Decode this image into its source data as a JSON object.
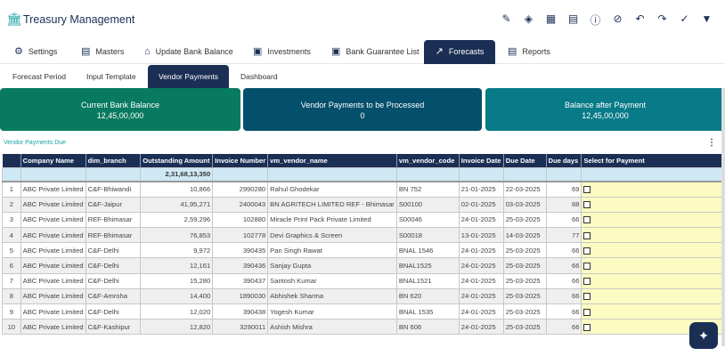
{
  "app": {
    "title": "Treasury Management",
    "logo_icon": "bank-icon"
  },
  "toolbar": [
    {
      "name": "edit-icon",
      "glyph": "✎"
    },
    {
      "name": "layers-icon",
      "glyph": "◈"
    },
    {
      "name": "calculator-icon",
      "glyph": "▦"
    },
    {
      "name": "copy-icon",
      "glyph": "▤"
    },
    {
      "name": "info-icon",
      "glyph": "ⓘ"
    },
    {
      "name": "hide-icon",
      "glyph": "⊘"
    },
    {
      "name": "undo-icon",
      "glyph": "↶"
    },
    {
      "name": "redo-icon",
      "glyph": "↷"
    },
    {
      "name": "check-icon",
      "glyph": "✓"
    },
    {
      "name": "filter-icon",
      "glyph": "▼"
    }
  ],
  "tabs": [
    {
      "label": "Settings",
      "icon": "⚙"
    },
    {
      "label": "Masters",
      "icon": "▤"
    },
    {
      "label": "Update Bank Balance",
      "icon": "⌂"
    },
    {
      "label": "Investments",
      "icon": "▣"
    },
    {
      "label": "Bank Guarantee List",
      "icon": "▣"
    },
    {
      "label": "Forecasts",
      "icon": "↗"
    },
    {
      "label": "Reports",
      "icon": "▤"
    }
  ],
  "subtabs": [
    "Forecast Period",
    "Input Template",
    "Vendor Payments",
    "Dashboard"
  ],
  "cards": [
    {
      "label": "Current Bank Balance",
      "value": "12,45,00,000",
      "color": "#087a5f"
    },
    {
      "label": "Vendor Payments to be Processed",
      "value": "0",
      "color": "#044f6b"
    },
    {
      "label": "Balance after Payment",
      "value": "12,45,00,000",
      "color": "#087a88"
    }
  ],
  "section_title": "Vendor Payments Due",
  "table": {
    "headers": [
      "",
      "Company Name",
      "dim_branch",
      "Outstanding Amount",
      "Invoice Number",
      "vm_vendor_name",
      "vm_vendor_code",
      "Invoice Date",
      "Due Date",
      "Due days",
      "Select for Payment"
    ],
    "total_amount": "2,31,68,13,350",
    "rows": [
      [
        "1",
        "ABC Private Limited",
        "C&F-Bhiwandi",
        "10,866",
        "2990280",
        "Rahul Ghodekar",
        "BN 752",
        "21-01-2025",
        "22-03-2025",
        "69"
      ],
      [
        "2",
        "ABC Private Limited",
        "C&F-Jaipur",
        "41,95,271",
        "2400043",
        "BN AGRITECH LIMITED REF - Bhimasar",
        "S00100",
        "02-01-2025",
        "03-03-2025",
        "88"
      ],
      [
        "3",
        "ABC Private Limited",
        "REF-Bhimasar",
        "2,59,296",
        "102880",
        "Miracle Print Pack Private Limited",
        "S00046",
        "24-01-2025",
        "25-03-2025",
        "66"
      ],
      [
        "4",
        "ABC Private Limited",
        "REF-Bhimasar",
        "76,853",
        "102778",
        "Devi Graphics & Screen",
        "S00018",
        "13-01-2025",
        "14-03-2025",
        "77"
      ],
      [
        "5",
        "ABC Private Limited",
        "C&F-Delhi",
        "9,972",
        "390435",
        "Pan Singh Rawat",
        "BNAL 1546",
        "24-01-2025",
        "25-03-2025",
        "66"
      ],
      [
        "6",
        "ABC Private Limited",
        "C&F-Delhi",
        "12,161",
        "390436",
        "Sanjay Gupta",
        "BNAL1525",
        "24-01-2025",
        "25-03-2025",
        "66"
      ],
      [
        "7",
        "ABC Private Limited",
        "C&F-Delhi",
        "15,280",
        "390437",
        "Santosh Kumar",
        "BNAL1521",
        "24-01-2025",
        "25-03-2025",
        "66"
      ],
      [
        "8",
        "ABC Private Limited",
        "C&F-Amroha",
        "14,400",
        "1890030",
        "Abhishek Sharma",
        "BN 620",
        "24-01-2025",
        "25-03-2025",
        "66"
      ],
      [
        "9",
        "ABC Private Limited",
        "C&F-Delhi",
        "12,020",
        "390438",
        "Yogesh Kumar",
        "BNAL 1535",
        "24-01-2025",
        "25-03-2025",
        "66"
      ],
      [
        "10",
        "ABC Private Limited",
        "C&F-Kashipur",
        "12,820",
        "3290011",
        "Ashish Mishra",
        "BN 606",
        "24-01-2025",
        "25-03-2025",
        "66"
      ]
    ]
  },
  "fab_icon": "sparkle-icon"
}
